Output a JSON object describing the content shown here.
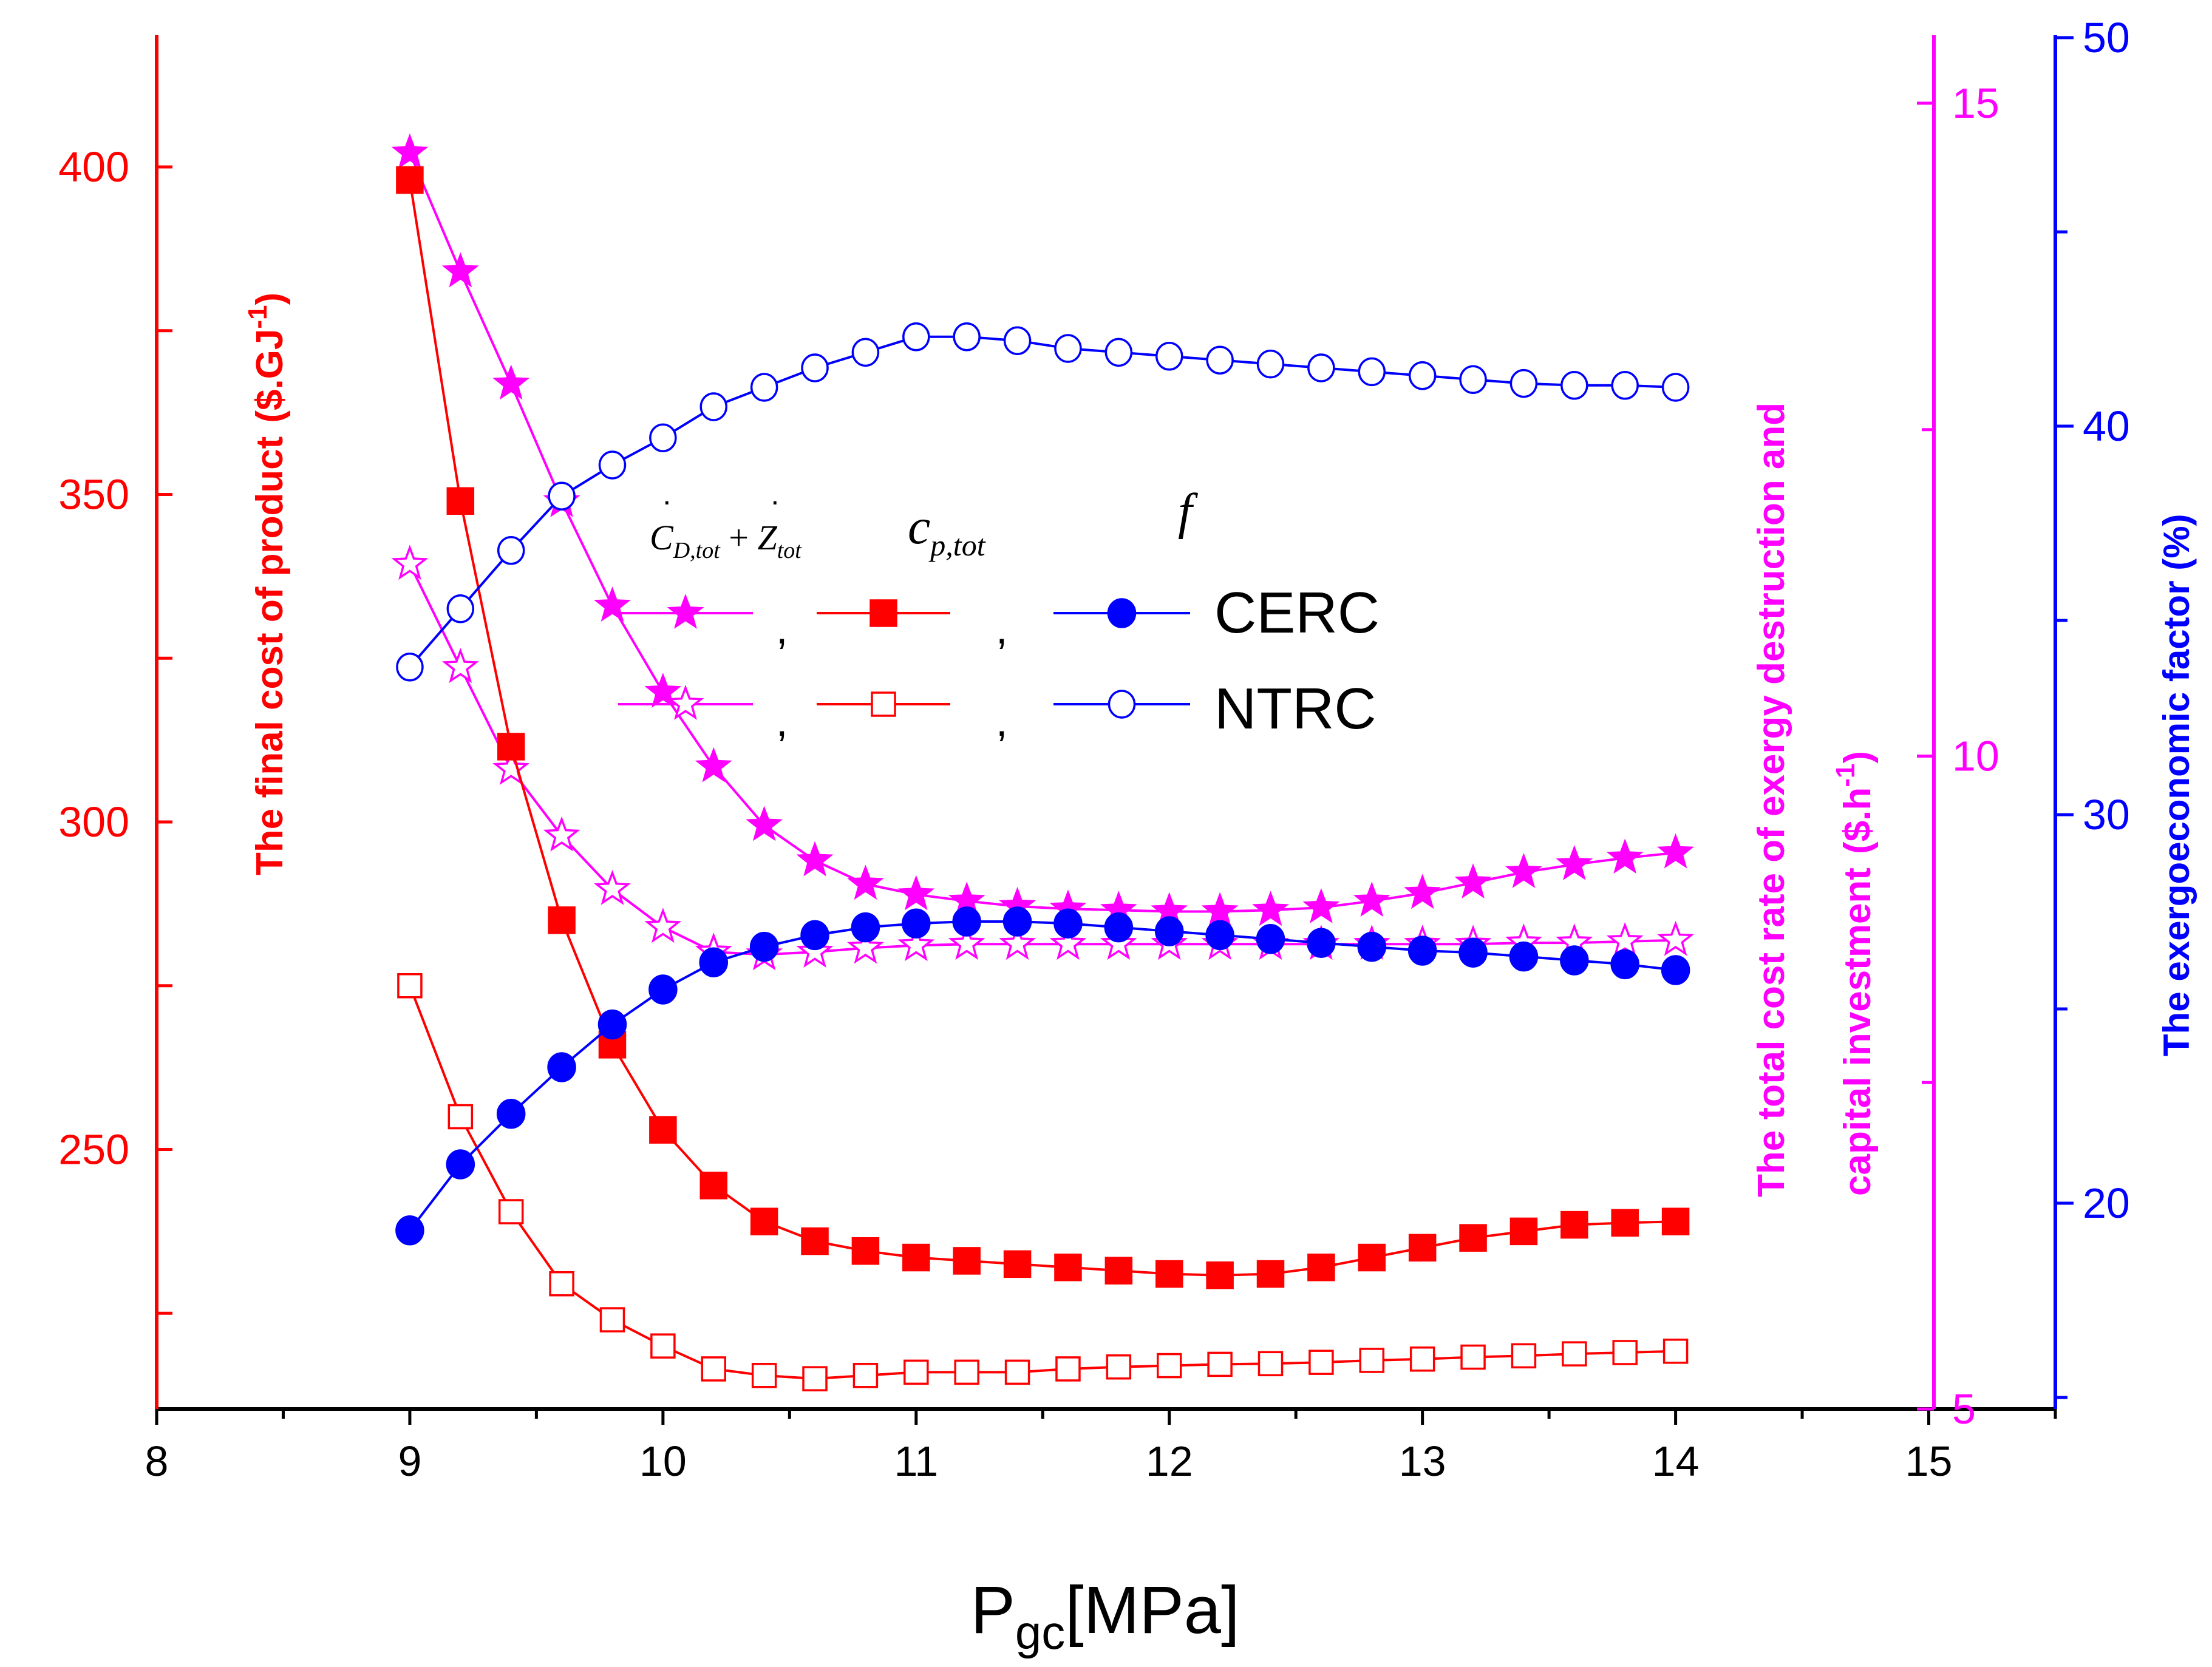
{
  "chart_data": {
    "type": "line",
    "title": "",
    "xlabel": {
      "main": "P",
      "sub": "gc",
      "rest": "[MPa]"
    },
    "x_ticks": [
      "8",
      "9",
      "10",
      "11",
      "12",
      "13",
      "14",
      "15"
    ],
    "xlim": [
      8,
      15.5
    ],
    "x": [
      9.0,
      9.2,
      9.4,
      9.6,
      9.8,
      10.0,
      10.2,
      10.4,
      10.6,
      10.8,
      11.0,
      11.2,
      11.4,
      11.6,
      11.8,
      12.0,
      12.2,
      12.4,
      12.6,
      12.8,
      13.0,
      13.2,
      13.4,
      13.6,
      13.8,
      14.0
    ],
    "axes": {
      "left": {
        "label": "The final cost of product",
        "unit_prefix": "($.GJ",
        "unit_exp": "-1",
        "unit_suffix": ")",
        "color": "#ff0000",
        "ylim": [
          210,
          420
        ],
        "ticks": [
          "250",
          "300",
          "350",
          "400"
        ]
      },
      "right1": {
        "label_line1": "The total cost rate of exergy destruction and",
        "label_line2": "capital investment",
        "unit_prefix": "($.h",
        "unit_exp": "-1",
        "unit_suffix": ")",
        "color": "#ff00ff",
        "ylim": [
          5,
          16
        ],
        "ticks": [
          "5",
          "10",
          "15"
        ]
      },
      "right2": {
        "label": "The exergoeconomic factor (%)",
        "color": "#0000ff",
        "ylim": [
          15,
          50
        ],
        "ticks": [
          "20",
          "30",
          "40",
          "50"
        ]
      }
    },
    "series": [
      {
        "name": "CERC cost rate",
        "axis": "right1",
        "marker": "star",
        "filled": true,
        "color": "#ff00ff",
        "values": [
          14.62,
          13.71,
          12.85,
          11.95,
          11.15,
          10.49,
          9.92,
          9.47,
          9.2,
          9.02,
          8.94,
          8.89,
          8.85,
          8.83,
          8.82,
          8.81,
          8.81,
          8.82,
          8.84,
          8.89,
          8.95,
          9.03,
          9.11,
          9.17,
          9.22,
          9.26
        ]
      },
      {
        "name": "NTRC cost rate",
        "axis": "right1",
        "marker": "star",
        "filled": false,
        "color": "#ff00ff",
        "values": [
          11.47,
          10.68,
          9.9,
          9.39,
          8.98,
          8.69,
          8.5,
          8.48,
          8.5,
          8.53,
          8.55,
          8.56,
          8.56,
          8.56,
          8.56,
          8.56,
          8.56,
          8.56,
          8.56,
          8.56,
          8.56,
          8.56,
          8.57,
          8.57,
          8.58,
          8.59
        ]
      },
      {
        "name": "CERC cost of product",
        "axis": "left",
        "marker": "square",
        "filled": true,
        "color": "#ff0000",
        "values": [
          398,
          349,
          311.5,
          285,
          266,
          253,
          244.5,
          239,
          236,
          234.5,
          233.5,
          233,
          232.5,
          232,
          231.5,
          231,
          230.8,
          231,
          232,
          233.5,
          235,
          236.5,
          237.5,
          238.5,
          238.8,
          239
        ]
      },
      {
        "name": "NTRC cost of product",
        "axis": "left",
        "marker": "square",
        "filled": false,
        "color": "#ff0000",
        "values": [
          275,
          255,
          240.5,
          229.5,
          224,
          220,
          216.5,
          215.5,
          215,
          215.5,
          216,
          216,
          216,
          216.5,
          216.8,
          217,
          217.2,
          217.3,
          217.5,
          217.8,
          218,
          218.3,
          218.5,
          218.8,
          219,
          219.2
        ]
      },
      {
        "name": "CERC exergoeconomic factor",
        "axis": "right2",
        "marker": "circle",
        "filled": true,
        "color": "#0000ff",
        "values": [
          19.3,
          21.0,
          22.3,
          23.5,
          24.6,
          25.5,
          26.2,
          26.6,
          26.9,
          27.1,
          27.2,
          27.25,
          27.25,
          27.2,
          27.1,
          27.0,
          26.9,
          26.8,
          26.7,
          26.6,
          26.5,
          26.45,
          26.35,
          26.25,
          26.15,
          26.0
        ]
      },
      {
        "name": "NTRC exergoeconomic factor",
        "axis": "right2",
        "marker": "circle",
        "filled": false,
        "color": "#0000ff",
        "values": [
          33.8,
          35.3,
          36.8,
          38.2,
          39.0,
          39.7,
          40.5,
          41.0,
          41.5,
          41.9,
          42.3,
          42.3,
          42.2,
          42.0,
          41.9,
          41.8,
          41.7,
          41.6,
          41.5,
          41.4,
          41.3,
          41.2,
          41.1,
          41.05,
          41.05,
          41.0
        ]
      }
    ],
    "legend": {
      "placement": "upper-center",
      "headers": {
        "cost_rate_a": "C",
        "cost_rate_a_sub": "D,tot",
        "cost_rate_b": "Z",
        "cost_rate_b_sub": "tot",
        "cost": "c",
        "cost_sub": "p,tot",
        "factor": "f"
      },
      "separator": ",",
      "rows": [
        "CERC",
        "NTRC"
      ]
    }
  }
}
